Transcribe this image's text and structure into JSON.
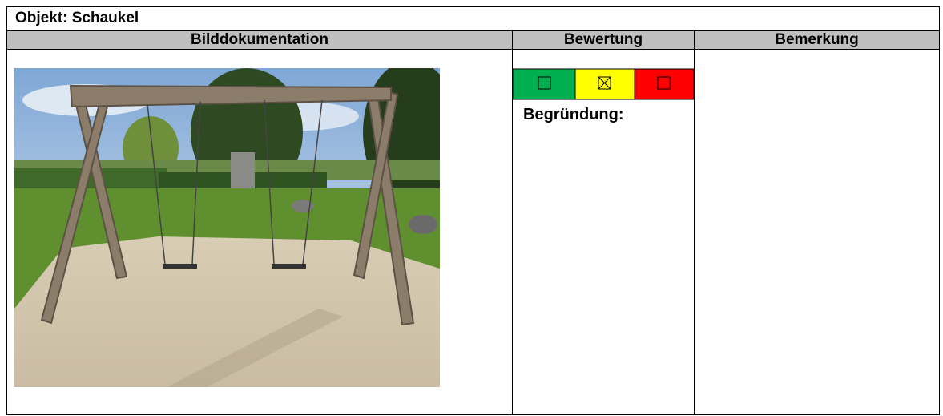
{
  "header": {
    "title": "Objekt: Schaukel"
  },
  "table": {
    "columns": [
      "Bilddokumentation",
      "Bewertung",
      "Bemerkung"
    ],
    "reason_label": "Begründung:"
  }
}
